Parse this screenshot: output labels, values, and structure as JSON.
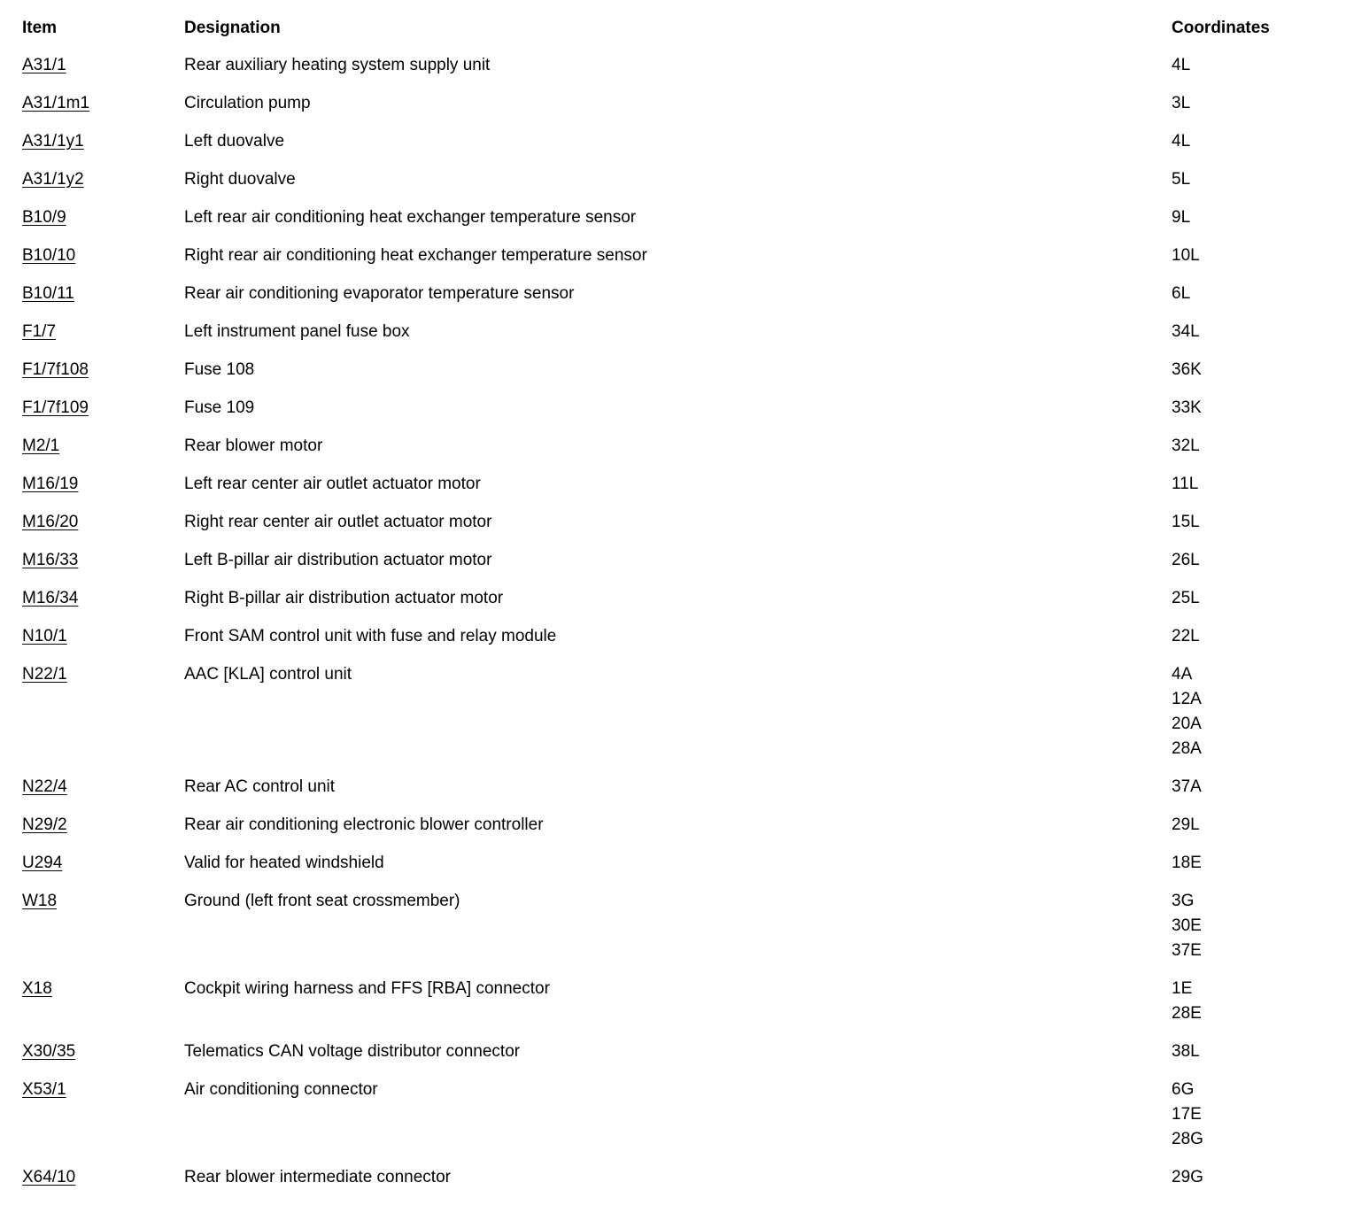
{
  "table": {
    "headers": {
      "item": "Item",
      "designation": "Designation",
      "coordinates": "Coordinates"
    },
    "rows": [
      {
        "item": "A31/1",
        "designation": "Rear auxiliary heating system supply unit",
        "coordinates": [
          "4L"
        ]
      },
      {
        "item": "A31/1m1",
        "designation": "Circulation pump",
        "coordinates": [
          "3L"
        ]
      },
      {
        "item": "A31/1y1",
        "designation": "Left duovalve",
        "coordinates": [
          "4L"
        ]
      },
      {
        "item": "A31/1y2",
        "designation": "Right duovalve",
        "coordinates": [
          "5L"
        ]
      },
      {
        "item": "B10/9",
        "designation": "Left rear air conditioning heat exchanger temperature sensor",
        "coordinates": [
          "9L"
        ]
      },
      {
        "item": "B10/10",
        "designation": "Right rear air conditioning heat exchanger temperature sensor",
        "coordinates": [
          "10L"
        ]
      },
      {
        "item": "B10/11",
        "designation": "Rear air conditioning evaporator temperature sensor",
        "coordinates": [
          "6L"
        ]
      },
      {
        "item": "F1/7",
        "designation": "Left instrument panel fuse box",
        "coordinates": [
          "34L"
        ]
      },
      {
        "item": "F1/7f108",
        "designation": "Fuse 108",
        "coordinates": [
          "36K"
        ]
      },
      {
        "item": "F1/7f109",
        "designation": "Fuse 109",
        "coordinates": [
          "33K"
        ]
      },
      {
        "item": "M2/1",
        "designation": "Rear blower motor",
        "coordinates": [
          "32L"
        ]
      },
      {
        "item": "M16/19",
        "designation": "Left rear center air outlet actuator motor",
        "coordinates": [
          "11L"
        ]
      },
      {
        "item": "M16/20",
        "designation": "Right rear center air outlet actuator motor",
        "coordinates": [
          "15L"
        ]
      },
      {
        "item": "M16/33",
        "designation": "Left B-pillar air distribution actuator motor",
        "coordinates": [
          "26L"
        ]
      },
      {
        "item": "M16/34",
        "designation": "Right B-pillar air distribution actuator motor",
        "coordinates": [
          "25L"
        ]
      },
      {
        "item": "N10/1",
        "designation": "Front SAM control unit with fuse and relay module",
        "coordinates": [
          "22L"
        ]
      },
      {
        "item": "N22/1",
        "designation": "AAC [KLA] control unit",
        "coordinates": [
          "4A",
          "12A",
          "20A",
          "28A"
        ]
      },
      {
        "item": "N22/4",
        "designation": "Rear AC control unit",
        "coordinates": [
          "37A"
        ]
      },
      {
        "item": "N29/2",
        "designation": "Rear air conditioning electronic blower controller",
        "coordinates": [
          "29L"
        ]
      },
      {
        "item": "U294",
        "designation": "Valid for heated windshield",
        "coordinates": [
          "18E"
        ]
      },
      {
        "item": "W18",
        "designation": "Ground (left front seat crossmember)",
        "coordinates": [
          "3G",
          "30E",
          "37E"
        ]
      },
      {
        "item": "X18",
        "designation": "Cockpit wiring harness and FFS [RBA] connector",
        "coordinates": [
          "1E",
          "28E"
        ]
      },
      {
        "item": "X30/35",
        "designation": "Telematics CAN voltage distributor connector",
        "coordinates": [
          "38L"
        ]
      },
      {
        "item": "X53/1",
        "designation": "Air conditioning connector",
        "coordinates": [
          "6G",
          "17E",
          "28G"
        ]
      },
      {
        "item": "X64/10",
        "designation": "Rear blower intermediate connector",
        "coordinates": [
          "29G"
        ]
      }
    ]
  }
}
